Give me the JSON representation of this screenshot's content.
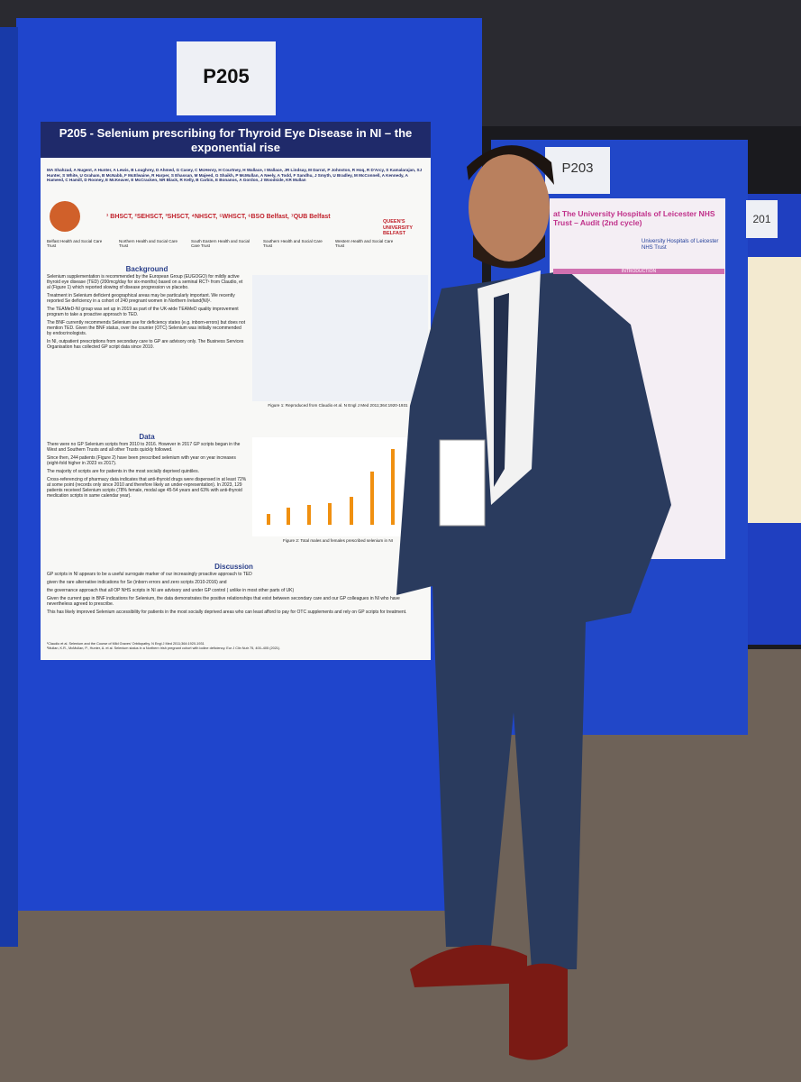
{
  "boards": [
    {
      "label": "P205"
    },
    {
      "label": "P203"
    },
    {
      "label": "201"
    }
  ],
  "poster": {
    "title": "P205 - Selenium prescribing for Thyroid Eye Disease in NI – the exponential rise",
    "authors": "MA Shahzad, A Nugent, A Hunter, A Lewis, B Loughrey, D Ahmed, G Casey, C McHenry, H Courtney, H Wallace, I Wallace, JR Lindsay, M Darrat, P Johnston, R Hoq, R D'Arcy, S Kamalarajan, SJ Hunter, S White, U Graham, B McNabb, F McElwaine, R Harper, S Ehassan, M Majeed, G Shaikh, P McMullan, A Neely, A Todd, F Sandhu, J Smyth, U Bradley, M McConnell, A Kennedy, A Hameed, C Hamill, D Rooney, E McKeaver, E McCracken, NR Black, R Kelly, B Carbin, E Bonanos, A Gordon, J Woodside, KR Mullan",
    "affiliations": "¹ BHSCT, ²SEHSCT, ³SHSCT, ⁴NHSCT, ⁵WHSCT, ⁶BSO Belfast, ⁷QUB Belfast",
    "university": "QUEEN'S UNIVERSITY BELFAST",
    "trusts": [
      "Belfast Health and Social Care Trust",
      "Northern Health and Social Care Trust",
      "South Eastern Health and Social Care Trust",
      "Southern Health and Social Care Trust",
      "Western Health and Social Care Trust"
    ],
    "background": {
      "heading": "Background",
      "paragraphs": [
        "Selenium supplementation is recommended by the European Group (EUGOGO) for mildly active thyroid eye disease (TED) (200mcg/day for six-months) based on a seminal RCT¹ from Claudio, et al (Figure 1) which reported slowing of disease progression vs placebo.",
        "Treatment in Selenium deficient geographical areas may be particularly important. We recently reported Se deficiency in a cohort of 240 pregnant women in Northern Ireland(NI)².",
        "The TEAMeD-NI group was set up in 2019 as part of the UK-wide TEAMeD quality improvement program to take a proactive approach to TED.",
        "The BNF currently recommends Selenium use for deficiency states (e.g. inborn-errors) but does not mention TED. Given the BNF status, over the counter (OTC) Selenium was initially recommended by endocrinologists.",
        "In NI, outpatient prescriptions from secondary care to GP are advisory only. The Business Services Organisation has collected GP script data since 2010."
      ]
    },
    "figure1_caption": "Figure 1: Reproduced from Claudio et al. N Engl J Med 2011;364:1920-1931",
    "data": {
      "heading": "Data",
      "paragraphs": [
        "There were no GP Selenium scripts from 2010 to 2016. However in 2017 GP scripts began in the West and Southern Trusts and all other Trusts quickly followed.",
        "Since then, 244 patients (Figure 2) have been prescribed selenium with year on year increases (eight-fold higher in 2023 vs 2017).",
        "The majority of scripts are for patients in the most socially deprived quintiles.",
        "Cross-referencing of pharmacy data indicates that anti-thyroid drugs were dispensed in at least 72% at some point (records only since 2010 and therefore likely an under-representation). In 2023, 129 patients received Selenium scripts (78% female, modal age 45-54 years and 63% with anti-thyroid medication scripts in same calendar year)."
      ]
    },
    "figure2_caption": "Figure 2: Total males and females prescribed selenium in NI",
    "discussion": {
      "heading": "Discussion",
      "bullets": [
        "GP scripts in NI appears to be a useful surrogate marker of our increasingly proactive approach to TED",
        "given the rare alternative indications for Se (inborn errors and zero scripts 2010-2016) and",
        "the governance approach that all OP NHS scripts in NI are advisory and under GP control ( unlike in most other parts of UK)",
        "Given the current gap in BNF indications for Selenium, the data demonstrates the positive relationships that exist between secondary care and our GP colleagues in NI who have nevertheless agreed to prescribe.",
        "This has likely improved Selenium accessibility for patients in the most socially deprived areas who can least afford to pay for OTC supplements and rely on GP scripts for treatment."
      ]
    },
    "references": [
      "¹Claudio et al. Selenium and the Course of Mild Graves' Orbitopathy. N Engl J Med 2011;364:1920-1931",
      "²Mullan, K.R., McMullan, P., Hunter, A. et al. Selenium status in a Northern Irish pregnant cohort with iodine deficiency. Eur J Clin Nutr 75, 400–405 (2021)."
    ]
  },
  "poster2": {
    "title": "at The University Hospitals of Leicester NHS Trust – Audit (2nd cycle)",
    "logo": "University Hospitals of Leicester NHS Trust",
    "section": "INTRODUCTION"
  }
}
